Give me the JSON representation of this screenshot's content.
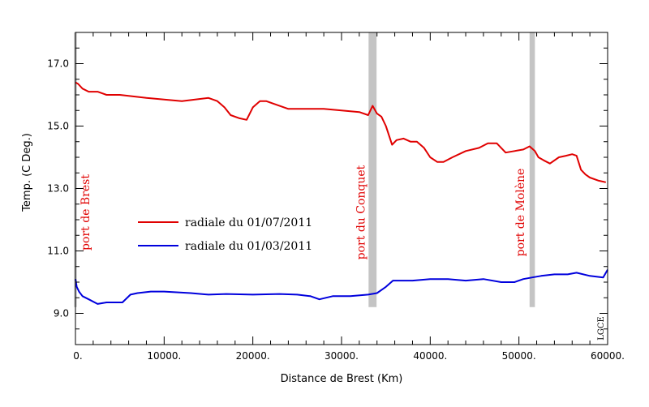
{
  "chart_data": {
    "type": "line",
    "xlabel": "Distance de Brest (Km)",
    "ylabel": "Temp. (C Deg.)",
    "xlim": [
      0,
      60000
    ],
    "ylim": [
      8.0,
      18.0
    ],
    "x_ticks": [
      0,
      10000,
      20000,
      30000,
      40000,
      50000,
      60000
    ],
    "x_tick_labels": [
      "0.",
      "10000.",
      "20000.",
      "30000.",
      "40000.",
      "50000.",
      "60000."
    ],
    "y_ticks": [
      9.0,
      11.0,
      13.0,
      15.0,
      17.0
    ],
    "y_tick_labels": [
      "9.0",
      "11.0",
      "13.0",
      "15.0",
      "17.0"
    ],
    "grid": false,
    "legend_placement": "center-left",
    "series": [
      {
        "name": "radiale du 01/07/2011",
        "color": "#e00000",
        "x": [
          0,
          300,
          800,
          1500,
          2500,
          3500,
          5000,
          6500,
          8000,
          10000,
          12000,
          13500,
          15000,
          16000,
          16800,
          17500,
          18500,
          19300,
          20000,
          20800,
          21500,
          22500,
          24000,
          26000,
          28000,
          30000,
          32000,
          33000,
          33500,
          34000,
          34500,
          35000,
          35700,
          36200,
          37000,
          37800,
          38500,
          39300,
          40000,
          40800,
          41500,
          42500,
          44000,
          45500,
          46500,
          47500,
          48500,
          49500,
          50500,
          51200,
          51800,
          52200,
          52800,
          53500,
          54500,
          55300,
          56000,
          56500,
          57000,
          57500,
          58000,
          59000,
          59800
        ],
        "values": [
          16.4,
          16.35,
          16.2,
          16.1,
          16.1,
          16.0,
          16.0,
          15.95,
          15.9,
          15.85,
          15.8,
          15.85,
          15.9,
          15.8,
          15.6,
          15.35,
          15.25,
          15.2,
          15.6,
          15.8,
          15.8,
          15.7,
          15.55,
          15.55,
          15.55,
          15.5,
          15.45,
          15.35,
          15.65,
          15.4,
          15.3,
          15.0,
          14.4,
          14.55,
          14.6,
          14.5,
          14.5,
          14.3,
          14.0,
          13.85,
          13.85,
          14.0,
          14.2,
          14.3,
          14.45,
          14.45,
          14.15,
          14.2,
          14.25,
          14.35,
          14.2,
          14.0,
          13.9,
          13.8,
          14.0,
          14.05,
          14.1,
          14.05,
          13.6,
          13.45,
          13.35,
          13.25,
          13.2
        ]
      },
      {
        "name": "radiale du 01/03/2011",
        "color": "#0000dd",
        "x": [
          0,
          150,
          400,
          800,
          1500,
          2500,
          3500,
          4500,
          5300,
          6200,
          7000,
          8500,
          10000,
          13000,
          15000,
          17000,
          20000,
          23000,
          25000,
          26500,
          27500,
          29000,
          31000,
          33000,
          34000,
          35000,
          35800,
          36500,
          38000,
          40000,
          42000,
          44000,
          46000,
          48000,
          49500,
          50500,
          51500,
          52500,
          54000,
          55500,
          56500,
          58000,
          59500,
          60000
        ],
        "values": [
          10.1,
          9.85,
          9.7,
          9.55,
          9.45,
          9.3,
          9.35,
          9.35,
          9.35,
          9.6,
          9.65,
          9.7,
          9.7,
          9.65,
          9.6,
          9.62,
          9.6,
          9.62,
          9.6,
          9.55,
          9.45,
          9.55,
          9.55,
          9.6,
          9.65,
          9.85,
          10.05,
          10.05,
          10.05,
          10.1,
          10.1,
          10.05,
          10.1,
          10.0,
          10.0,
          10.1,
          10.15,
          10.2,
          10.25,
          10.25,
          10.3,
          10.2,
          10.15,
          10.4
        ]
      }
    ],
    "annotations": [
      {
        "text": "port de Brest",
        "x": 0,
        "band_width": 300
      },
      {
        "text": "port du Conquet",
        "x": 33500,
        "band_width": 900
      },
      {
        "text": "port de Molène",
        "x": 51500,
        "band_width": 600
      }
    ],
    "band_y_range": [
      9.2,
      18.0
    ],
    "band_color": "#c4c4c4",
    "credit": "LGCE"
  }
}
